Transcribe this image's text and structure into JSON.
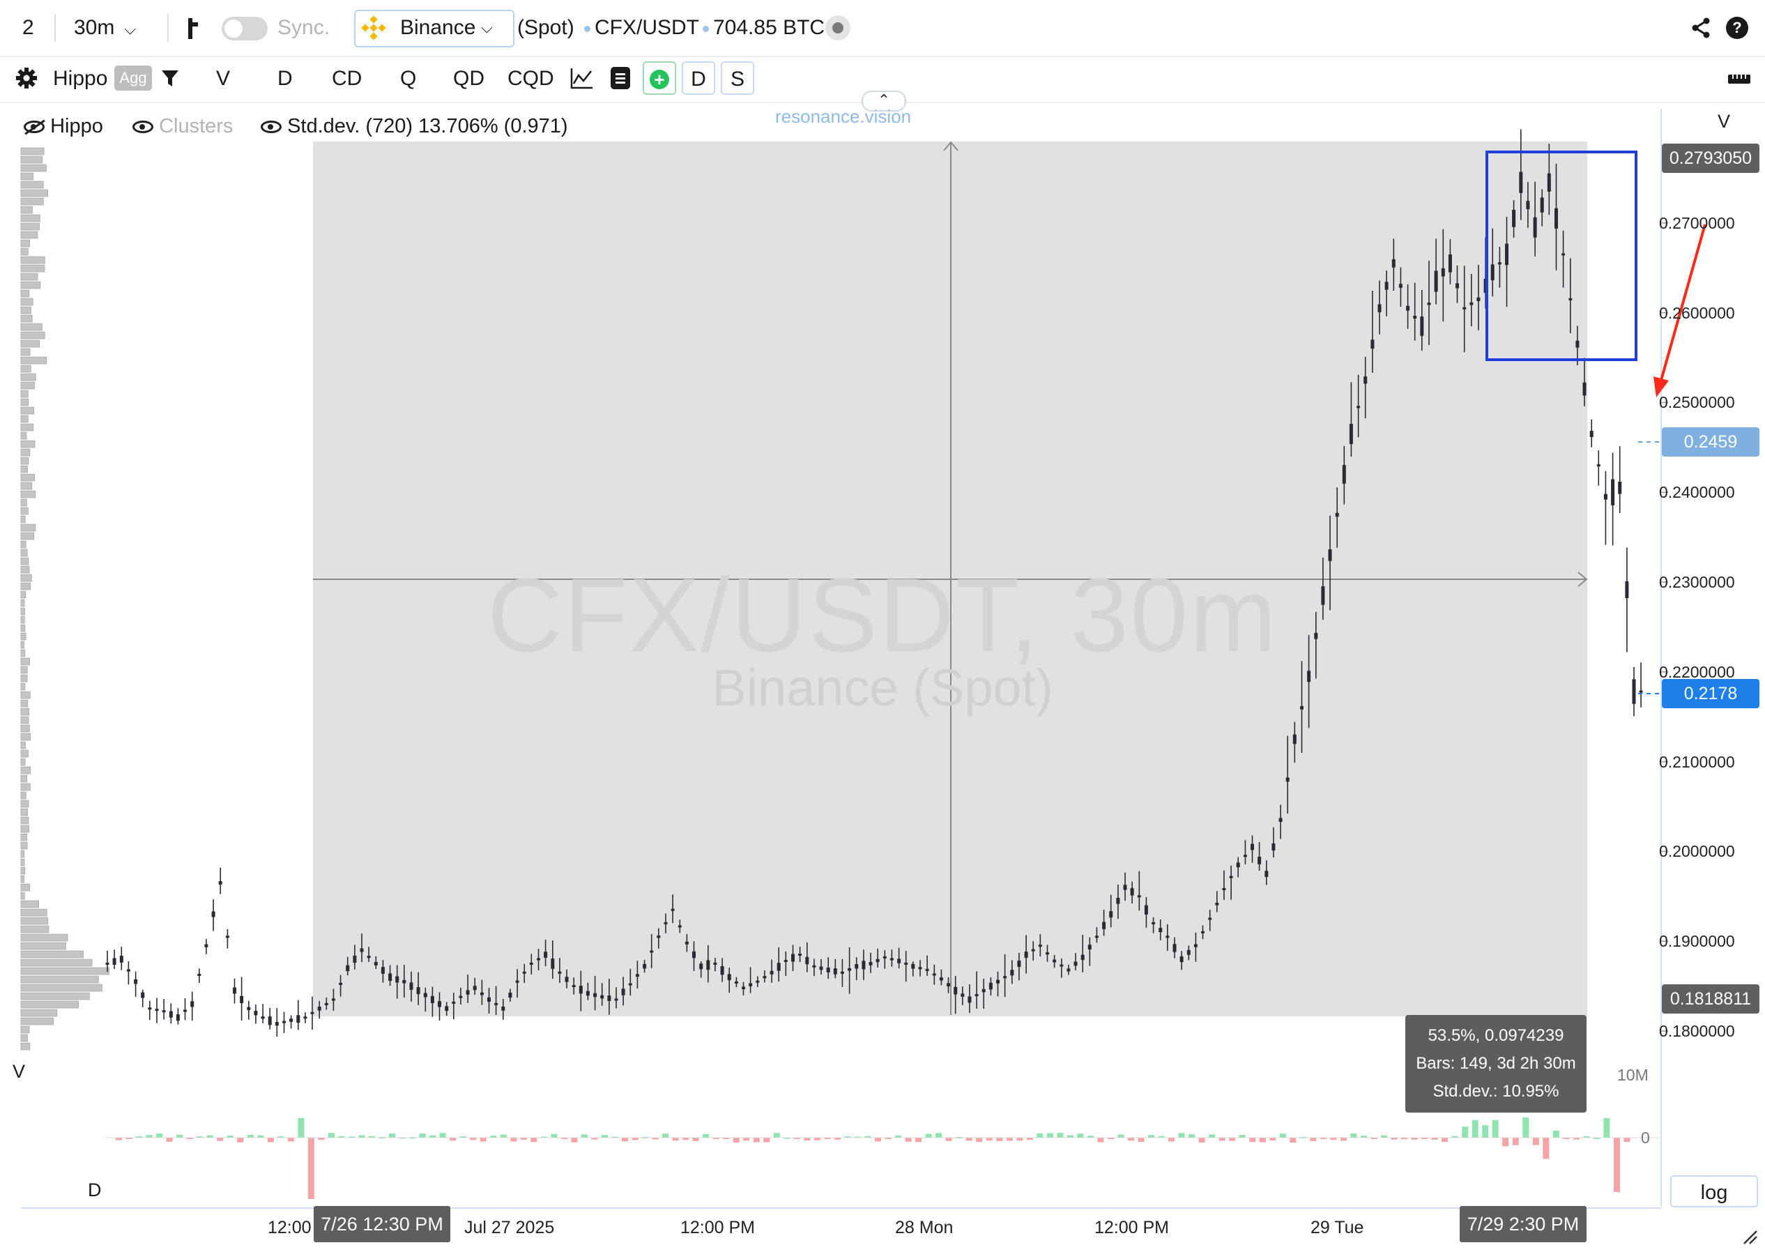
{
  "toolbar": {
    "layout_count": "2",
    "timeframe": "30m",
    "sync_label": "Sync.",
    "exchange": "Binance",
    "market": "(Spot)",
    "pair": "CFX/USDT",
    "volume": "704.85 BTC"
  },
  "toolbar2": {
    "profile": "Hippo",
    "agg_badge": "Agg",
    "buttons": [
      "V",
      "D",
      "CD",
      "Q",
      "QD",
      "CQD"
    ],
    "toggle_d": "D",
    "toggle_s": "S"
  },
  "watermark": {
    "site": "resonance.vision",
    "symbol": "CFX/USDT, 30m",
    "venue": "Binance (Spot)"
  },
  "indicators": {
    "hippo": "Hippo",
    "clusters": "Clusters",
    "stddev": "Std.dev. (720) 13.706% (0.971)"
  },
  "price_axis": {
    "header": "V",
    "ticks": [
      "0.2700000",
      "0.2600000",
      "0.2500000",
      "0.2400000",
      "0.2300000",
      "0.2200000",
      "0.2100000",
      "0.2000000",
      "0.1900000",
      "0.1800000"
    ],
    "tag_high": "0.2793050",
    "tag_cursor": "0.2459",
    "tag_current": "0.2178",
    "tag_low": "0.1818811",
    "vol_scale": "10M",
    "vol_zero": "0",
    "log_btn": "log"
  },
  "side_labels": {
    "v": "V",
    "d": "D"
  },
  "time_axis": {
    "labels": [
      "12:00",
      "Jul 27 2025",
      "12:00 PM",
      "28 Mon",
      "12:00 PM",
      "29 Tue"
    ],
    "tag_start": "7/26 12:30 PM",
    "tag_end": "7/29 2:30 PM"
  },
  "measure": {
    "line1": "53.5%, 0.0974239",
    "line2": "Bars: 149, 3d 2h 30m",
    "line3": "Std.dev.: 10.95%"
  },
  "colors": {
    "accent": "#1e7fe8",
    "box": "#1f3fd8",
    "arrow": "#ff2a1a",
    "bar_up": "#8fe3ae",
    "bar_down": "#f5a3a6",
    "candle": "#2a2a35"
  },
  "chart_data": {
    "type": "candlestick",
    "ylim": [
      0.178,
      0.28
    ],
    "price_points": [
      0.1875,
      0.188,
      0.1855,
      0.1825,
      0.1822,
      0.1815,
      0.183,
      0.1895,
      0.1965,
      0.1845,
      0.1825,
      0.1815,
      0.1808,
      0.1812,
      0.1815,
      0.1825,
      0.1835,
      0.187,
      0.189,
      0.1875,
      0.186,
      0.1855,
      0.1845,
      0.1835,
      0.1825,
      0.1838,
      0.1848,
      0.1835,
      0.1825,
      0.1855,
      0.1875,
      0.1885,
      0.1865,
      0.185,
      0.1842,
      0.1838,
      0.1835,
      0.1852,
      0.1872,
      0.1905,
      0.1935,
      0.1898,
      0.1872,
      0.1875,
      0.186,
      0.1848,
      0.1855,
      0.1865,
      0.1878,
      0.1885,
      0.1872,
      0.1868,
      0.1865,
      0.1872,
      0.1875,
      0.1882,
      0.1878,
      0.1872,
      0.1868,
      0.1858,
      0.1845,
      0.1835,
      0.1845,
      0.1855,
      0.1865,
      0.1885,
      0.1895,
      0.1878,
      0.1868,
      0.1882,
      0.1905,
      0.193,
      0.196,
      0.195,
      0.192,
      0.1905,
      0.188,
      0.1895,
      0.1925,
      0.1958,
      0.1985,
      0.2005,
      0.1975,
      0.2035,
      0.2125,
      0.2195,
      0.2285,
      0.2375,
      0.2465,
      0.2525,
      0.2605,
      0.2655,
      0.2605,
      0.2585,
      0.2635,
      0.2655,
      0.2605,
      0.2615,
      0.2645,
      0.2665,
      0.2745,
      0.2695,
      0.2745,
      0.2665,
      0.2565,
      0.2465,
      0.2395,
      0.2405,
      0.2178
    ],
    "tag_high": 0.279305,
    "tag_cursor": 0.2459,
    "tag_current": 0.2178,
    "tag_low": 0.1818811
  }
}
